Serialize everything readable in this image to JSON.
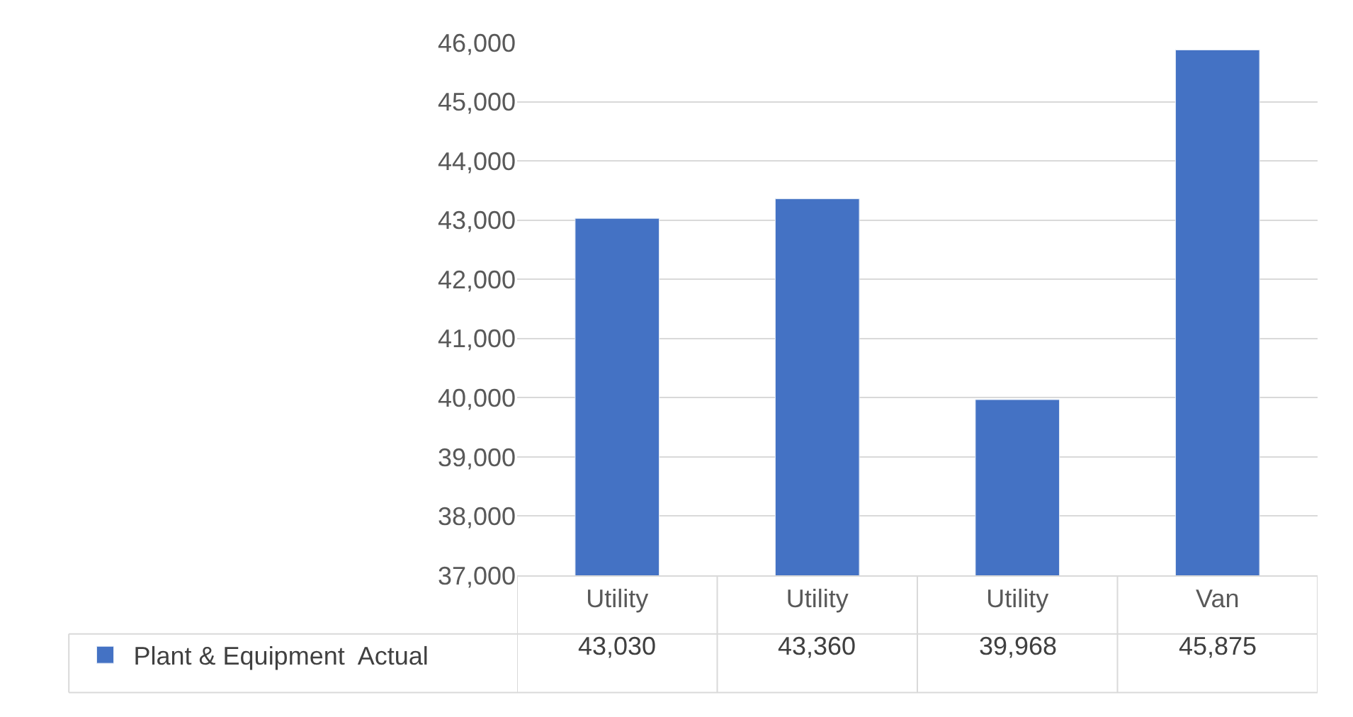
{
  "chart_data": {
    "type": "bar",
    "categories": [
      "Utility",
      "Utility",
      "Utility",
      "Van"
    ],
    "series": [
      {
        "name": "Plant & Equipment  Actual",
        "color": "#4472c4",
        "values": [
          43030,
          43360,
          39968,
          45875
        ],
        "value_labels": [
          "43,030",
          "43,360",
          "39,968",
          "45,875"
        ]
      }
    ],
    "ylim": [
      37000,
      46000
    ],
    "yticks": [
      {
        "value": 37000,
        "label": "37,000"
      },
      {
        "value": 38000,
        "label": "38,000"
      },
      {
        "value": 39000,
        "label": "39,000"
      },
      {
        "value": 40000,
        "label": "40,000"
      },
      {
        "value": 41000,
        "label": "41,000"
      },
      {
        "value": 42000,
        "label": "42,000"
      },
      {
        "value": 43000,
        "label": "43,000"
      },
      {
        "value": 44000,
        "label": "44,000"
      },
      {
        "value": 45000,
        "label": "45,000"
      },
      {
        "value": 46000,
        "label": "46,000"
      }
    ],
    "grid": "y",
    "legend": "bottom left"
  }
}
